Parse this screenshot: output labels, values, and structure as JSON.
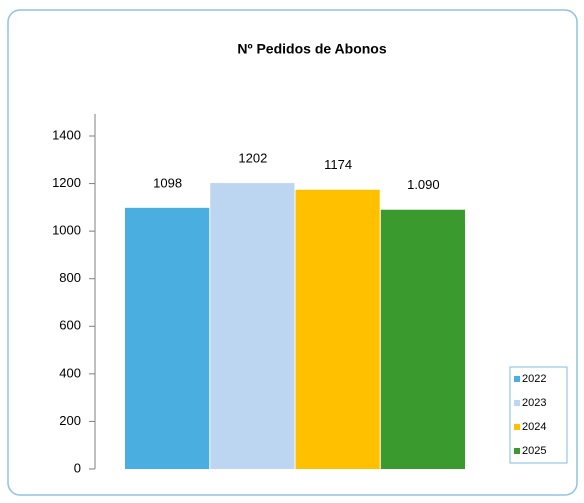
{
  "chart_data": {
    "type": "bar",
    "title": "Nº Pedidos de Abonos",
    "series": [
      {
        "name": "2022",
        "color": "#4aaee0",
        "values": [
          1098
        ]
      },
      {
        "name": "2023",
        "color": "#bcd5f1",
        "values": [
          1202
        ]
      },
      {
        "name": "2024",
        "color": "#ffc000",
        "values": [
          1174
        ]
      },
      {
        "name": "2025",
        "color": "#3a9a2e",
        "values": [
          1090
        ],
        "value_labels": [
          "1.090"
        ]
      }
    ],
    "ylim": [
      0,
      1400
    ],
    "yticks": [
      0,
      200,
      400,
      600,
      800,
      1000,
      1200,
      1400
    ],
    "grid": false,
    "legend": "bottom-right"
  }
}
